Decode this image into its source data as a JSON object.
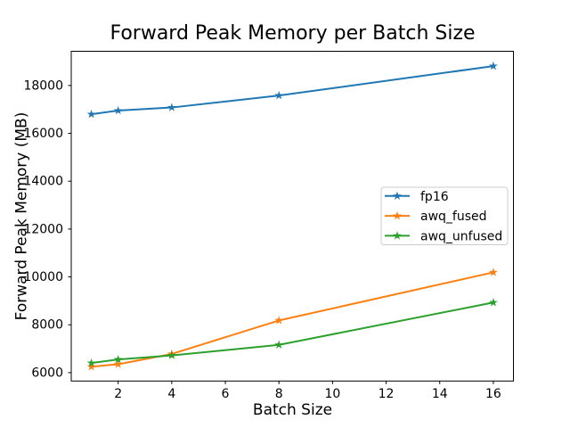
{
  "chart_data": {
    "type": "line",
    "title": "Forward Peak Memory per Batch Size",
    "xlabel": "Batch Size",
    "ylabel": "Forward Peak Memory (MB)",
    "x": [
      1,
      2,
      4,
      8,
      16
    ],
    "series": [
      {
        "name": "fp16",
        "color": "#1f77b4",
        "marker": "star",
        "values": [
          16800,
          16950,
          17080,
          17580,
          18810
        ]
      },
      {
        "name": "awq_fused",
        "color": "#ff7f0e",
        "marker": "star",
        "values": [
          6250,
          6350,
          6780,
          8180,
          10190
        ]
      },
      {
        "name": "awq_unfused",
        "color": "#2ca02c",
        "marker": "star",
        "values": [
          6400,
          6550,
          6720,
          7160,
          8930
        ]
      }
    ],
    "xticks": [
      2,
      4,
      6,
      8,
      10,
      12,
      14,
      16
    ],
    "yticks": [
      6000,
      8000,
      10000,
      12000,
      14000,
      16000,
      18000
    ],
    "xlim": [
      0.25,
      16.75
    ],
    "ylim": [
      5650,
      19430
    ],
    "grid": false,
    "legend": {
      "position": "center-right",
      "entries": [
        "fp16",
        "awq_fused",
        "awq_unfused"
      ]
    },
    "style": {
      "spine_color": "#000000",
      "tick_color": "#000000",
      "text_color": "#000000",
      "legend_border": "#cccccc",
      "legend_bg": "#ffffff",
      "background": "#ffffff"
    }
  }
}
